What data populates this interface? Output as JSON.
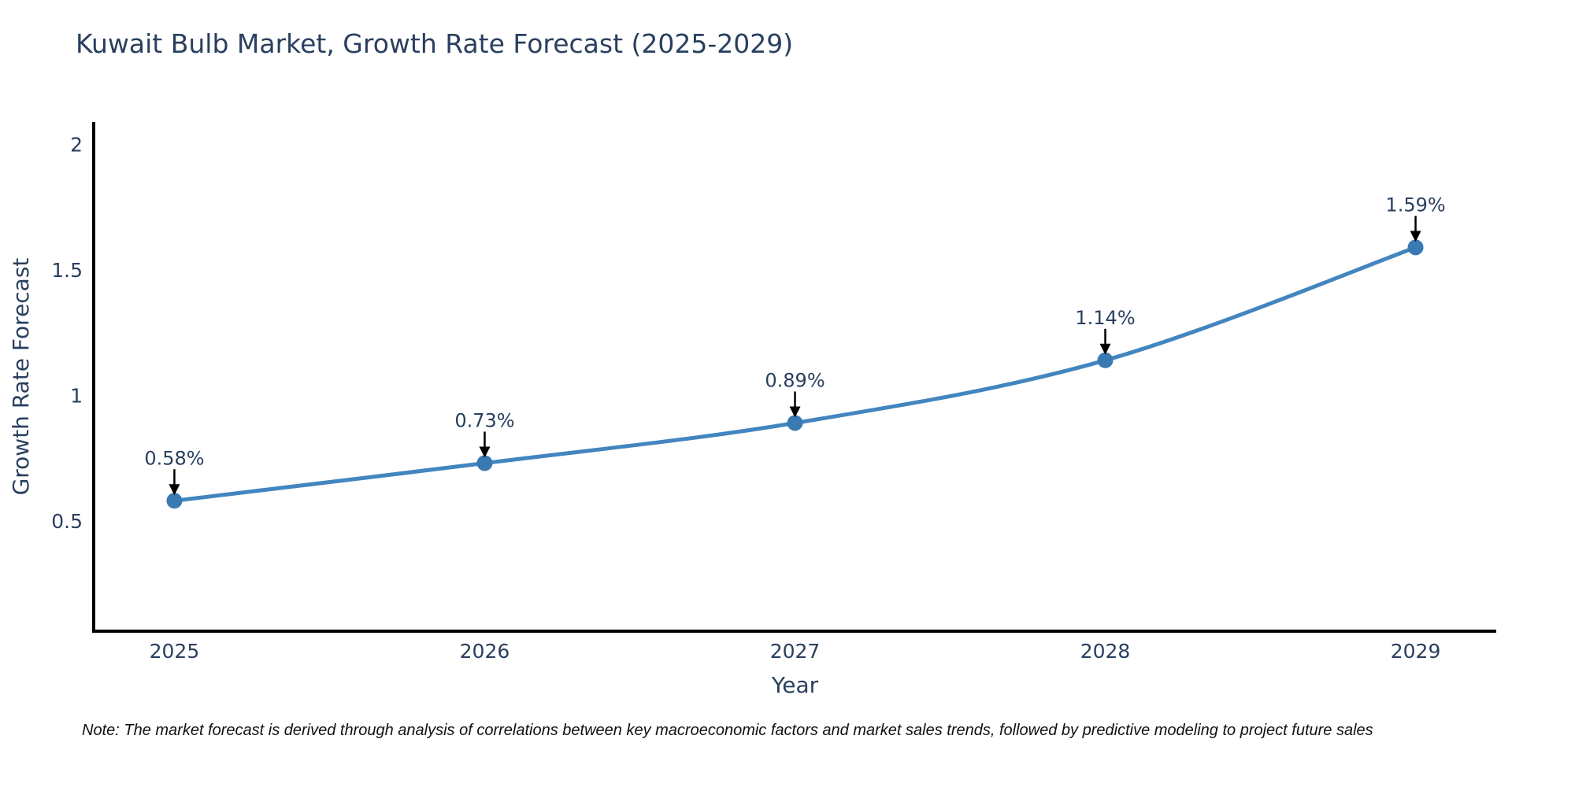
{
  "title": "Kuwait Bulb Market, Growth Rate Forecast (2025-2029)",
  "note": "Note: The market forecast is derived through analysis of correlations between key macroeconomic factors and market sales trends, followed by predictive modeling to project future sales",
  "chart_data": {
    "type": "line",
    "title": "Kuwait Bulb Market, Growth Rate Forecast (2025-2029)",
    "xlabel": "Year",
    "ylabel": "Growth Rate Forecast",
    "x": [
      2025,
      2026,
      2027,
      2028,
      2029
    ],
    "y": [
      0.58,
      0.73,
      0.89,
      1.14,
      1.59
    ],
    "point_labels": [
      "0.58%",
      "0.73%",
      "0.89%",
      "1.14%",
      "1.59%"
    ],
    "x_tick_labels": [
      "2025",
      "2026",
      "2027",
      "2028",
      "2029"
    ],
    "y_ticks": [
      0.5,
      1,
      1.5,
      2
    ],
    "y_tick_labels": [
      "0.5",
      "1",
      "1.5",
      "2"
    ],
    "xlim": [
      2024.74,
      2029.26
    ],
    "ylim": [
      0.06,
      2.09
    ],
    "grid": false,
    "legend": "none",
    "line_shape": "spline",
    "colors": {
      "line": "#4285bf",
      "marker": "#3a7ab3",
      "axis": "#000000",
      "text": "#2a3f5f",
      "annotation_arrow": "#000000",
      "note_text": "#111111",
      "background": "#ffffff"
    }
  }
}
